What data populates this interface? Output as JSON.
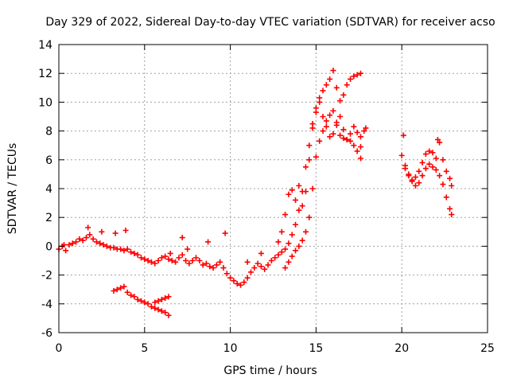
{
  "chart_data": {
    "type": "scatter",
    "title": "Day 329 of 2022, Sidereal Day-to-day VTEC variation (SDTVAR) for receiver acso",
    "xlabel": "GPS time / hours",
    "ylabel": "SDTVAR / TECUs",
    "xlim": [
      0,
      25
    ],
    "ylim": [
      -6,
      14
    ],
    "xticks": [
      "0",
      "5",
      "10",
      "15",
      "20",
      "25"
    ],
    "yticks": [
      "-6",
      "-4",
      "-2",
      "0",
      "2",
      "4",
      "6",
      "8",
      "10",
      "12",
      "14"
    ],
    "grid": true,
    "marker": "+",
    "color": "#ff0000",
    "series": [
      {
        "name": "main-track",
        "x": [
          0.0,
          0.2,
          0.4,
          0.6,
          0.8,
          1.0,
          1.2,
          1.4,
          1.6,
          1.8,
          2.0,
          2.2,
          2.4,
          2.6,
          2.8,
          3.0,
          3.2,
          3.4,
          3.6,
          3.8,
          4.0,
          4.2,
          4.4,
          4.6,
          4.8,
          5.0,
          5.2,
          5.4,
          5.6,
          5.8,
          6.0,
          6.2,
          6.4,
          6.6,
          6.8,
          7.0,
          7.2,
          7.4,
          7.6,
          7.8,
          8.0,
          8.2,
          8.4,
          8.6,
          8.8,
          9.0,
          9.2,
          9.4,
          9.6,
          9.8,
          10.0,
          10.2,
          10.4,
          10.6,
          10.8,
          11.0,
          11.2,
          11.4,
          11.6,
          11.8,
          12.0,
          12.2,
          12.4,
          12.6,
          12.8,
          13.0,
          13.2,
          13.4,
          13.6,
          13.8,
          14.0,
          14.2,
          14.4,
          14.6,
          14.8,
          15.0,
          15.2,
          15.4,
          15.6,
          15.8,
          16.0,
          16.2,
          16.4,
          16.6,
          16.8,
          17.0,
          17.2,
          17.4,
          17.6,
          17.8
        ],
        "y": [
          -0.2,
          0.0,
          -0.3,
          0.1,
          0.2,
          0.3,
          0.5,
          0.4,
          0.6,
          0.8,
          0.5,
          0.3,
          0.2,
          0.1,
          0.0,
          -0.1,
          -0.1,
          -0.2,
          -0.2,
          -0.3,
          -0.2,
          -0.4,
          -0.5,
          -0.6,
          -0.8,
          -0.9,
          -1.0,
          -1.1,
          -1.2,
          -1.0,
          -0.8,
          -0.7,
          -0.9,
          -1.0,
          -1.1,
          -0.8,
          -0.6,
          -1.0,
          -1.2,
          -1.0,
          -0.8,
          -1.0,
          -1.3,
          -1.2,
          -1.4,
          -1.5,
          -1.3,
          -1.1,
          -1.5,
          -1.9,
          -2.2,
          -2.4,
          -2.6,
          -2.7,
          -2.5,
          -2.2,
          -1.8,
          -1.5,
          -1.2,
          -1.4,
          -1.6,
          -1.3,
          -1.0,
          -0.8,
          -0.6,
          -0.4,
          -0.2,
          0.2,
          0.8,
          1.5,
          2.5,
          3.8,
          5.5,
          7.0,
          8.2,
          9.3,
          10.0,
          9.0,
          8.3,
          7.6,
          7.8,
          8.6,
          9.0,
          8.1,
          7.4,
          7.8,
          8.3,
          7.9,
          7.6,
          8.0
        ]
      },
      {
        "name": "upper-branch",
        "x": [
          12.8,
          13.0,
          13.2,
          13.4,
          13.6,
          13.8,
          14.0,
          14.2,
          14.4,
          14.6,
          14.8,
          15.0,
          15.2,
          15.4,
          15.6,
          15.8,
          16.0,
          16.2,
          16.4,
          16.6,
          16.8,
          17.0,
          17.2,
          17.4,
          17.6
        ],
        "y": [
          0.3,
          1.0,
          2.2,
          3.6,
          3.9,
          3.2,
          4.2,
          2.8,
          3.8,
          6.0,
          8.5,
          9.6,
          10.3,
          10.8,
          11.2,
          11.6,
          12.2,
          11.0,
          10.1,
          10.5,
          11.2,
          11.6,
          11.8,
          11.9,
          12.0
        ]
      },
      {
        "name": "lower-branch",
        "x": [
          13.2,
          13.4,
          13.6,
          13.8,
          14.0,
          14.2,
          14.4,
          14.6,
          14.8,
          15.0,
          15.2,
          15.4,
          15.6,
          15.8,
          16.0,
          16.2,
          16.4,
          16.6,
          16.8,
          17.0,
          17.2,
          17.4,
          17.6
        ],
        "y": [
          -1.5,
          -1.1,
          -0.7,
          -0.3,
          0.0,
          0.4,
          1.0,
          2.0,
          4.0,
          6.2,
          7.3,
          8.0,
          8.7,
          9.1,
          9.4,
          8.4,
          7.7,
          7.5,
          7.4,
          7.3,
          7.0,
          6.6,
          6.1
        ]
      },
      {
        "name": "low-track",
        "x": [
          3.2,
          3.4,
          3.6,
          3.8,
          4.0,
          4.2,
          4.4,
          4.6,
          4.8,
          5.0,
          5.2,
          5.4,
          5.6,
          5.8,
          6.0,
          6.2,
          6.4
        ],
        "y": [
          -3.1,
          -3.0,
          -2.9,
          -2.8,
          -3.2,
          -3.4,
          -3.5,
          -3.7,
          -3.8,
          -3.9,
          -4.0,
          -4.2,
          -4.3,
          -4.4,
          -4.5,
          -4.6,
          -4.8
        ]
      },
      {
        "name": "low-track-tail",
        "x": [
          5.6,
          5.8,
          6.0,
          6.2,
          6.4
        ],
        "y": [
          -3.9,
          -3.8,
          -3.7,
          -3.6,
          -3.5
        ]
      },
      {
        "name": "late-track",
        "x": [
          20.0,
          20.2,
          20.4,
          20.6,
          20.8,
          21.0,
          21.2,
          21.4,
          21.6,
          21.8,
          22.0,
          22.2,
          22.4,
          22.6,
          22.8,
          22.9
        ],
        "y": [
          6.3,
          5.6,
          4.9,
          4.5,
          4.2,
          4.4,
          4.9,
          5.4,
          5.7,
          5.5,
          5.3,
          4.9,
          4.3,
          3.4,
          2.6,
          2.2
        ]
      },
      {
        "name": "late-track-upper",
        "x": [
          20.2,
          20.4,
          20.6,
          20.8,
          21.0,
          21.2,
          21.4,
          21.6,
          21.8,
          22.0,
          22.2,
          22.4,
          22.6,
          22.8,
          22.9
        ],
        "y": [
          5.4,
          5.0,
          4.6,
          4.8,
          5.2,
          5.8,
          6.4,
          6.6,
          6.5,
          6.1,
          7.2,
          6.0,
          5.2,
          4.7,
          4.2
        ]
      },
      {
        "name": "scattered-outliers",
        "x": [
          0.3,
          1.7,
          2.5,
          3.3,
          3.9,
          6.5,
          7.2,
          7.5,
          8.7,
          9.7,
          11.0,
          11.8,
          17.6,
          17.9,
          20.1,
          22.1
        ],
        "y": [
          0.1,
          1.3,
          1.0,
          0.9,
          1.1,
          -0.5,
          0.6,
          -0.2,
          0.3,
          0.9,
          -1.1,
          -0.5,
          6.9,
          8.2,
          7.7,
          7.4
        ]
      }
    ]
  }
}
